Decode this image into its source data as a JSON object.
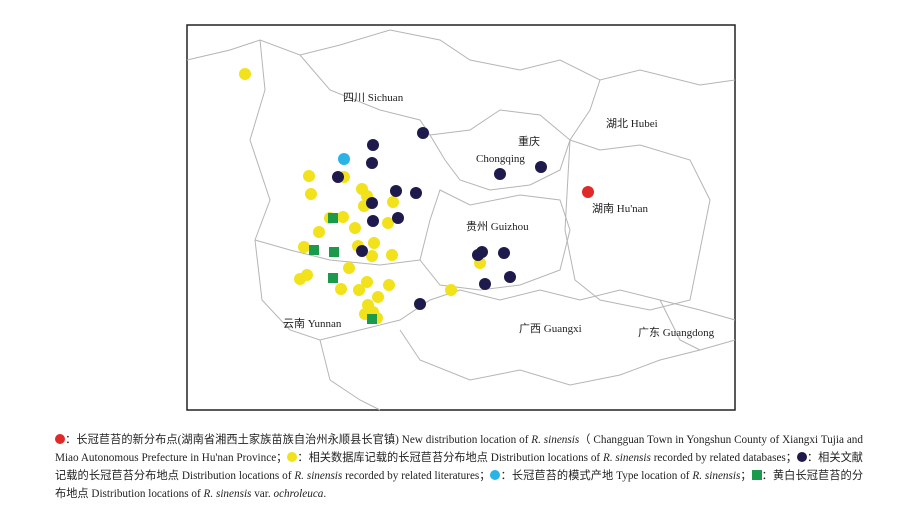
{
  "map": {
    "regions": [
      "四川 Sichuan",
      "重庆",
      "Chongqing",
      "湖北 Hubei",
      "湖南 Hu'nan",
      "贵州 Guizhou",
      "云南 Yunnan",
      "广西 Guangxi",
      "广东 Guangdong"
    ]
  },
  "legend": {
    "items": [
      {
        "color": "#e02a2a",
        "shape": "circle",
        "parts": [
          {
            "text": "：长冠苣苔的新分布点(湖南省湘西土家族苗族自治州永顺县长官镇) New distribution location of ",
            "italic": false
          },
          {
            "text": "R. sinensis",
            "italic": true
          },
          {
            "text": "（ Changguan Town in Yongshun County of Xiangxi Tujia and Miao Autonomous Prefecture in Hu'nan Province；",
            "italic": false
          }
        ]
      },
      {
        "color": "#f2e21b",
        "shape": "circle",
        "parts": [
          {
            "text": "：相关数据库记载的长冠苣苔分布地点 Distribution locations of ",
            "italic": false
          },
          {
            "text": "R. sinensis",
            "italic": true
          },
          {
            "text": " recorded by related databases；",
            "italic": false
          }
        ]
      },
      {
        "color": "#1e1a4c",
        "shape": "circle",
        "parts": [
          {
            "text": "：相关文献记载的长冠苣苔分布地点 Distribution locations of ",
            "italic": false
          },
          {
            "text": "R. sinensis",
            "italic": true
          },
          {
            "text": " recorded by related literatures；",
            "italic": false
          }
        ]
      },
      {
        "color": "#2ab3e6",
        "shape": "circle",
        "parts": [
          {
            "text": "：长冠苣苔的模式产地 Type location of ",
            "italic": false
          },
          {
            "text": "R. sinensis",
            "italic": true
          },
          {
            "text": "；",
            "italic": false
          }
        ]
      },
      {
        "color": "#1a9a4a",
        "shape": "square",
        "parts": [
          {
            "text": "：黄白长冠苣苔的分布地点 Distribution locations of ",
            "italic": false
          },
          {
            "text": "R. sinensis",
            "italic": true
          },
          {
            "text": " var. ",
            "italic": false
          },
          {
            "text": "ochroleuca",
            "italic": true
          },
          {
            "text": ".",
            "italic": false
          }
        ]
      }
    ]
  }
}
